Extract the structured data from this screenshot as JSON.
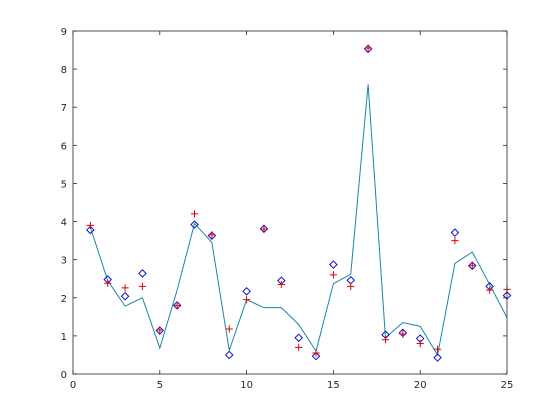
{
  "chart_data": {
    "type": "line",
    "title": "",
    "xlabel": "",
    "ylabel": "",
    "xlim": [
      0,
      25
    ],
    "ylim": [
      0,
      9
    ],
    "grid": false,
    "xticks": [
      0,
      5,
      10,
      15,
      20,
      25
    ],
    "yticks": [
      0,
      1,
      2,
      3,
      4,
      5,
      6,
      7,
      8,
      9
    ],
    "x": [
      1,
      2,
      3,
      4,
      5,
      6,
      7,
      8,
      9,
      10,
      11,
      12,
      13,
      14,
      15,
      16,
      17,
      18,
      19,
      20,
      21,
      22,
      23,
      24,
      25
    ],
    "series": [
      {
        "marker": "line",
        "color": "#1a86a8",
        "values": [
          3.85,
          2.45,
          1.78,
          2.0,
          0.68,
          2.2,
          3.95,
          3.45,
          0.62,
          1.95,
          1.74,
          1.74,
          1.3,
          0.6,
          2.37,
          2.62,
          7.6,
          0.95,
          1.35,
          1.25,
          0.5,
          2.9,
          3.2,
          2.35,
          1.48
        ]
      },
      {
        "marker": "diamond",
        "color": "#1111cc",
        "values": [
          3.78,
          2.48,
          2.04,
          2.64,
          1.14,
          1.8,
          3.92,
          3.63,
          0.5,
          2.17,
          3.81,
          2.45,
          0.95,
          0.47,
          2.87,
          2.46,
          8.53,
          1.03,
          1.08,
          0.93,
          0.43,
          3.71,
          2.84,
          2.3,
          2.06
        ]
      },
      {
        "marker": "plus",
        "color": "#e00000",
        "values": [
          3.9,
          2.38,
          2.26,
          2.3,
          1.15,
          1.8,
          4.2,
          3.65,
          1.18,
          1.95,
          3.8,
          2.35,
          0.7,
          0.55,
          2.6,
          2.3,
          8.55,
          0.9,
          1.05,
          0.8,
          0.65,
          3.5,
          2.85,
          2.2,
          2.22
        ]
      }
    ]
  }
}
